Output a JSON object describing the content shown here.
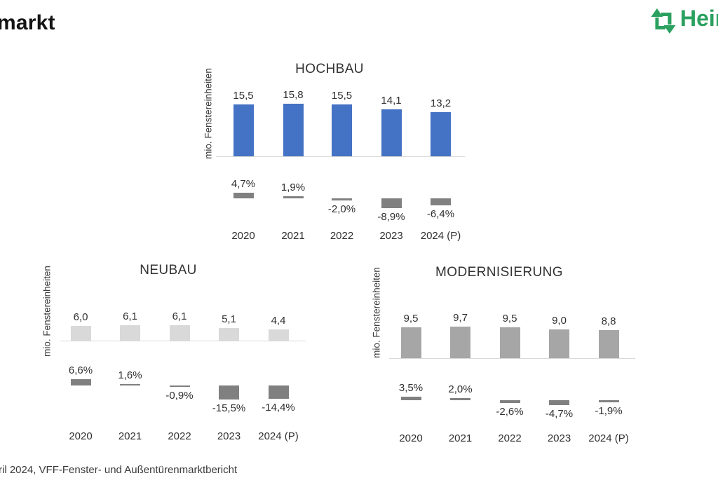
{
  "page": {
    "title_fragment": "markt",
    "footer": "ril 2024, VFF-Fenster- und Außentürenmarktbericht",
    "logo": {
      "text": "Hein",
      "color": "#2BA05F",
      "icon": "heinze-arrows-logo"
    },
    "text_color": "#303030",
    "axis_color": "#D9D9D9",
    "pct_bar_color": "#808080"
  },
  "chart_data": [
    {
      "id": "hochbau",
      "type": "bar",
      "title": "HOCHBAU",
      "ylabel": "mio. Fenstereinheiten",
      "categories": [
        "2020",
        "2021",
        "2022",
        "2023",
        "2024 (P)"
      ],
      "values": [
        15.5,
        15.8,
        15.5,
        14.1,
        13.2
      ],
      "value_labels": [
        "15,5",
        "15,8",
        "15,5",
        "14,1",
        "13,2"
      ],
      "pct_change": [
        4.7,
        1.9,
        -2.0,
        -8.9,
        -6.4
      ],
      "pct_labels": [
        "4,7%",
        "1,9%",
        "-2,0%",
        "-8,9%",
        "-6,4%"
      ],
      "bar_color": "#4472C4",
      "legend": "none",
      "grid": false
    },
    {
      "id": "neubau",
      "type": "bar",
      "title": "NEUBAU",
      "ylabel": "mio. Fenstereinheiten",
      "categories": [
        "2020",
        "2021",
        "2022",
        "2023",
        "2024 (P)"
      ],
      "values": [
        6.0,
        6.1,
        6.1,
        5.1,
        4.4
      ],
      "value_labels": [
        "6,0",
        "6,1",
        "6,1",
        "5,1",
        "4,4"
      ],
      "pct_change": [
        6.6,
        1.6,
        -0.9,
        -15.5,
        -14.4
      ],
      "pct_labels": [
        "6,6%",
        "1,6%",
        "-0,9%",
        "-15,5%",
        "-14,4%"
      ],
      "bar_color": "#D9D9D9",
      "legend": "none",
      "grid": false
    },
    {
      "id": "modernisierung",
      "type": "bar",
      "title": "MODERNISIERUNG",
      "ylabel": "mio. Fenstereinheiten",
      "categories": [
        "2020",
        "2021",
        "2022",
        "2023",
        "2024 (P)"
      ],
      "values": [
        9.5,
        9.7,
        9.5,
        9.0,
        8.8
      ],
      "value_labels": [
        "9,5",
        "9,7",
        "9,5",
        "9,0",
        "8,8"
      ],
      "pct_change": [
        3.5,
        2.0,
        -2.6,
        -4.7,
        -1.9
      ],
      "pct_labels": [
        "3,5%",
        "2,0%",
        "-2,6%",
        "-4,7%",
        "-1,9%"
      ],
      "bar_color": "#A6A6A6",
      "legend": "none",
      "grid": false
    }
  ]
}
